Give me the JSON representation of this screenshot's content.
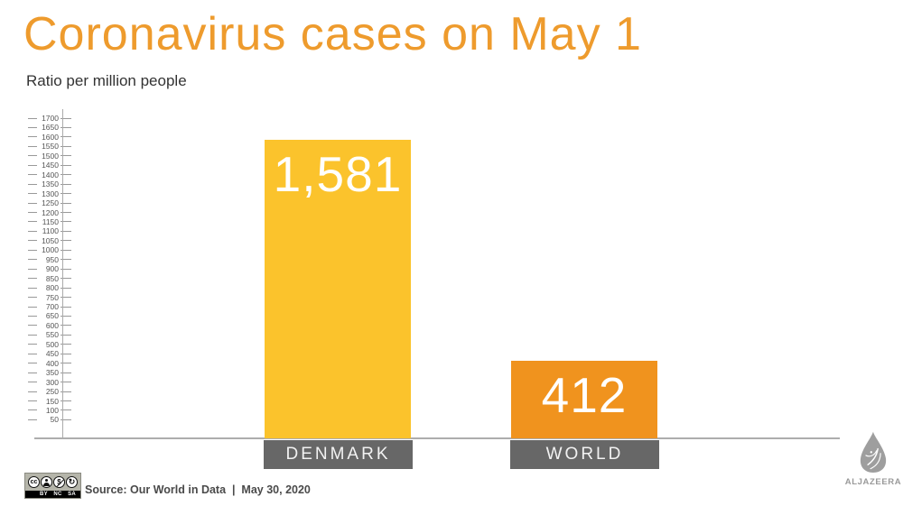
{
  "header": {
    "title": "Coronavirus cases on May 1",
    "subtitle": "Ratio per million people"
  },
  "chart_data": {
    "type": "bar",
    "title": "Coronavirus cases on May 1",
    "ylabel": "Ratio per million people",
    "categories": [
      "DENMARK",
      "WORLD"
    ],
    "values": [
      1581,
      412
    ],
    "value_labels": [
      "1,581",
      "412"
    ],
    "bar_colors": [
      "#FBC32C",
      "#F0931E"
    ],
    "axis_max": 1700,
    "ylim": [
      0,
      1750
    ],
    "ytick_labels": [
      "1700",
      "1650",
      "1600",
      "1550",
      "1500",
      "1450",
      "1400",
      "1350",
      "1300",
      "1250",
      "1200",
      "1150",
      "1100",
      "1050",
      "1000",
      "950",
      "900",
      "850",
      "800",
      "750",
      "700",
      "650",
      "600",
      "550",
      "500",
      "450",
      "400",
      "350",
      "300",
      "250",
      "150",
      "100",
      "50"
    ],
    "grid": false,
    "legend": false
  },
  "footer": {
    "source": "Source: Our World in Data  |  May 30, 2020",
    "license": {
      "cc": "cc",
      "labels": [
        "BY",
        "NC",
        "SA"
      ],
      "nc_symbol": "$",
      "sa_symbol": "↻"
    }
  },
  "branding": {
    "wordmark": "ALJAZEERA"
  },
  "colors": {
    "title": "#EE9B2D",
    "denmark_bar": "#FBC32C",
    "world_bar": "#F0931E",
    "category_box": "#676767",
    "axis": "#ADADAD"
  }
}
